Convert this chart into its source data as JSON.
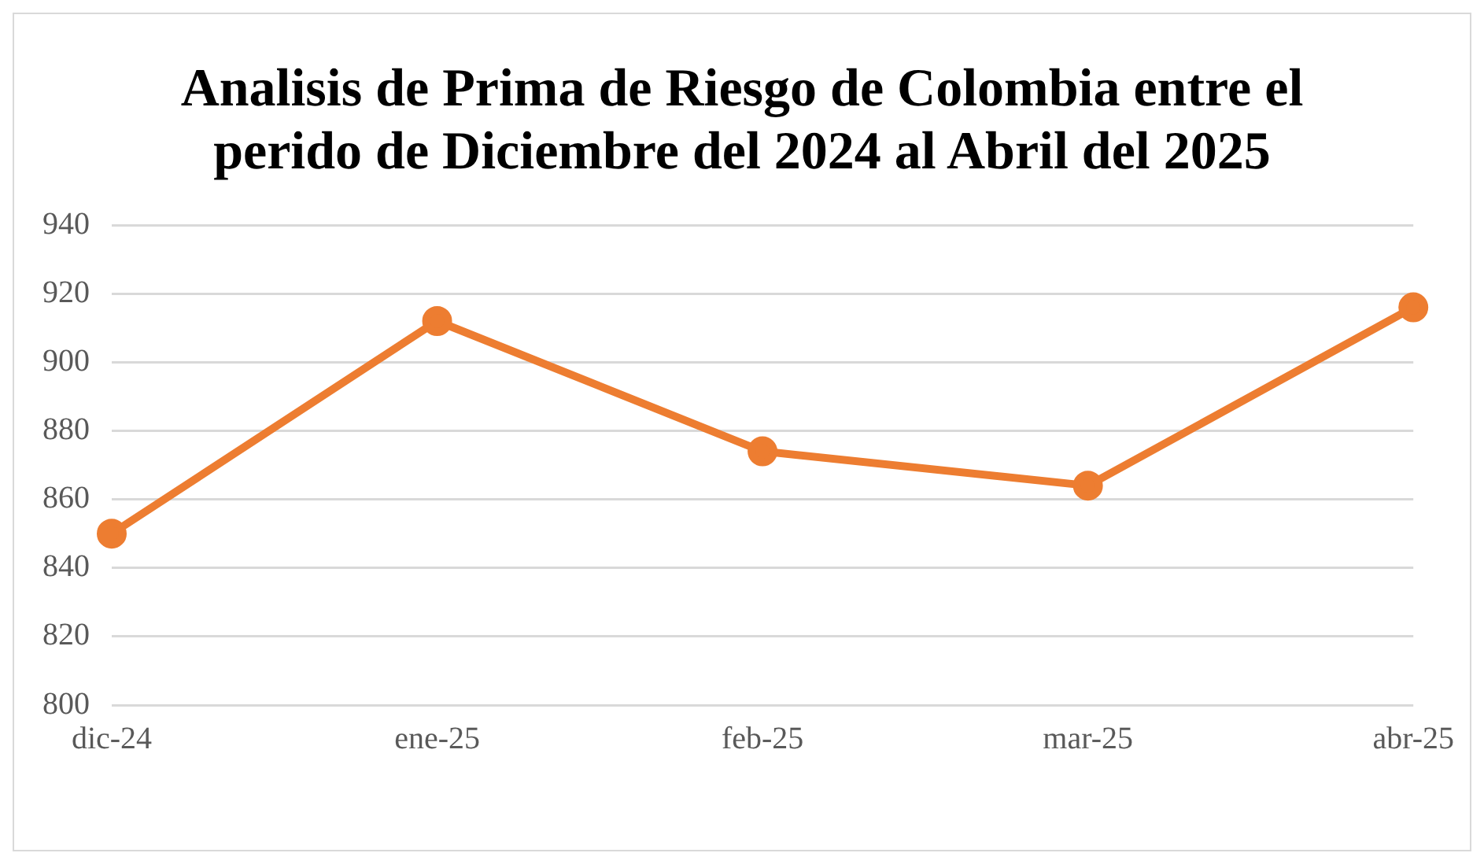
{
  "chart_data": {
    "type": "line",
    "title": "Analisis de Prima de Riesgo de Colombia entre el perido de Diciembre del 2024 al Abril del 2025",
    "categories": [
      "dic-24",
      "ene-25",
      "feb-25",
      "mar-25",
      "abr-25"
    ],
    "series": [
      {
        "color": "#ed7d31",
        "values": [
          850,
          912,
          874,
          864,
          916
        ]
      }
    ],
    "ylim": [
      800,
      940
    ],
    "yticks": [
      800,
      820,
      840,
      860,
      880,
      900,
      920,
      940
    ],
    "grid": "y",
    "marker": "circle",
    "legend": false
  }
}
